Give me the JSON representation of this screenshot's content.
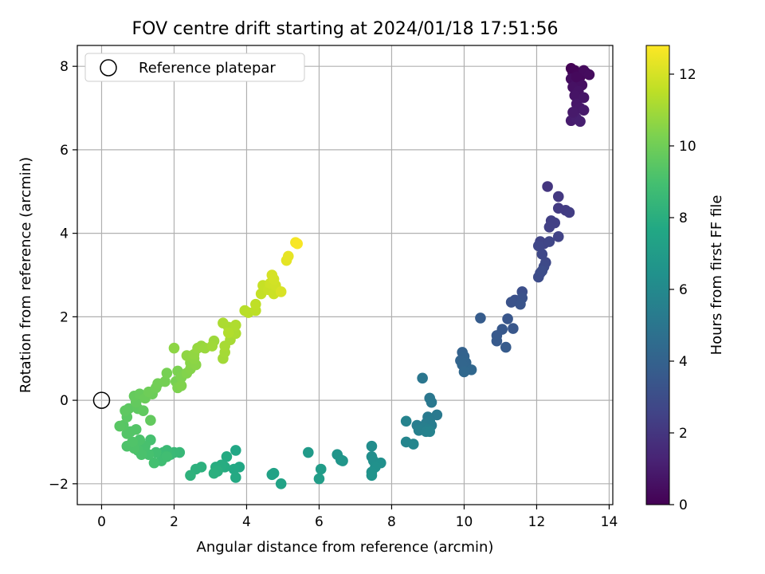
{
  "chart_data": {
    "type": "scatter",
    "title": "FOV centre drift starting at 2024/01/18 17:51:56",
    "xlabel": "Angular distance from reference (arcmin)",
    "ylabel": "Rotation from reference (arcmin)",
    "xlim": [
      -0.67,
      14.1
    ],
    "ylim": [
      -2.5,
      8.5
    ],
    "xticks": [
      0,
      2,
      4,
      6,
      8,
      10,
      12,
      14
    ],
    "yticks": [
      -2,
      0,
      2,
      4,
      6,
      8
    ],
    "xtick_labels": [
      "0",
      "2",
      "4",
      "6",
      "8",
      "10",
      "12",
      "14"
    ],
    "ytick_labels": [
      "−2",
      "0",
      "2",
      "4",
      "6",
      "8"
    ],
    "grid": true,
    "legend": {
      "placement": "upper-left",
      "entries": [
        "Reference platepar"
      ]
    },
    "reference_point": {
      "x": 0,
      "y": 0
    },
    "colorbar": {
      "label": "Hours from first FF file",
      "colormap": "viridis",
      "range": [
        0,
        12.8
      ],
      "ticks": [
        0,
        2,
        4,
        6,
        8,
        10,
        12
      ],
      "tick_labels": [
        "0",
        "2",
        "4",
        "6",
        "8",
        "10",
        "12"
      ]
    },
    "points": [
      [
        12.95,
        7.95,
        0.05
      ],
      [
        13.0,
        7.85,
        0.1
      ],
      [
        13.05,
        7.9,
        0.15
      ],
      [
        13.1,
        7.8,
        0.2
      ],
      [
        13.2,
        7.75,
        0.25
      ],
      [
        13.35,
        7.85,
        0.3
      ],
      [
        13.3,
        7.9,
        0.35
      ],
      [
        13.45,
        7.8,
        0.4
      ],
      [
        12.95,
        7.7,
        0.45
      ],
      [
        13.1,
        7.6,
        0.5
      ],
      [
        13.25,
        7.55,
        0.55
      ],
      [
        13.0,
        7.5,
        0.6
      ],
      [
        13.15,
        7.4,
        0.65
      ],
      [
        13.05,
        7.3,
        0.7
      ],
      [
        13.3,
        7.25,
        0.75
      ],
      [
        13.1,
        7.1,
        0.8
      ],
      [
        13.2,
        7.0,
        0.85
      ],
      [
        13.3,
        6.95,
        0.9
      ],
      [
        13.05,
        6.8,
        0.95
      ],
      [
        12.95,
        6.7,
        1.0
      ],
      [
        13.1,
        6.75,
        1.05
      ],
      [
        13.2,
        6.68,
        1.1
      ],
      [
        13.0,
        6.9,
        0.9
      ],
      [
        13.1,
        7.75,
        0.3
      ],
      [
        12.3,
        5.12,
        2.0
      ],
      [
        12.6,
        4.88,
        2.1
      ],
      [
        12.6,
        4.6,
        2.2
      ],
      [
        12.8,
        4.55,
        2.25
      ],
      [
        12.9,
        4.5,
        2.3
      ],
      [
        12.4,
        4.3,
        2.35
      ],
      [
        12.5,
        4.25,
        2.4
      ],
      [
        12.35,
        4.15,
        2.45
      ],
      [
        12.6,
        3.92,
        2.5
      ],
      [
        12.1,
        3.8,
        2.55
      ],
      [
        12.2,
        3.75,
        2.6
      ],
      [
        12.35,
        3.8,
        2.65
      ],
      [
        12.05,
        3.7,
        2.7
      ],
      [
        12.15,
        3.5,
        2.75
      ],
      [
        12.25,
        3.3,
        2.8
      ],
      [
        12.2,
        3.2,
        2.85
      ],
      [
        12.1,
        3.05,
        2.9
      ],
      [
        12.05,
        2.95,
        2.95
      ],
      [
        12.15,
        3.1,
        3.0
      ],
      [
        11.6,
        2.6,
        3.1
      ],
      [
        11.4,
        2.4,
        3.15
      ],
      [
        11.6,
        2.45,
        3.2
      ],
      [
        11.3,
        2.35,
        3.25
      ],
      [
        11.55,
        2.3,
        3.3
      ],
      [
        11.2,
        1.95,
        3.4
      ],
      [
        11.35,
        1.72,
        3.45
      ],
      [
        11.05,
        1.7,
        3.5
      ],
      [
        10.9,
        1.55,
        3.55
      ],
      [
        10.9,
        1.42,
        3.6
      ],
      [
        11.15,
        1.27,
        3.65
      ],
      [
        10.45,
        1.97,
        3.7
      ],
      [
        9.95,
        1.15,
        4.0
      ],
      [
        10.0,
        1.05,
        4.05
      ],
      [
        9.9,
        0.95,
        4.1
      ],
      [
        10.05,
        0.9,
        4.15
      ],
      [
        9.95,
        0.85,
        4.2
      ],
      [
        10.2,
        0.73,
        4.25
      ],
      [
        10.0,
        0.68,
        4.3
      ],
      [
        8.85,
        0.53,
        5.0
      ],
      [
        9.05,
        0.05,
        5.05
      ],
      [
        9.1,
        -0.05,
        5.1
      ],
      [
        9.25,
        -0.35,
        5.15
      ],
      [
        9.0,
        -0.4,
        5.2
      ],
      [
        9.05,
        -0.5,
        5.25
      ],
      [
        8.95,
        -0.55,
        5.3
      ],
      [
        9.1,
        -0.6,
        5.35
      ],
      [
        8.7,
        -0.6,
        5.4
      ],
      [
        8.9,
        -0.65,
        5.45
      ],
      [
        9.0,
        -0.7,
        5.5
      ],
      [
        8.75,
        -0.72,
        5.55
      ],
      [
        8.95,
        -0.75,
        5.6
      ],
      [
        9.05,
        -0.75,
        5.65
      ],
      [
        8.4,
        -0.5,
        5.7
      ],
      [
        8.4,
        -1.0,
        5.8
      ],
      [
        8.6,
        -1.05,
        5.85
      ],
      [
        7.45,
        -1.1,
        6.2
      ],
      [
        7.45,
        -1.35,
        6.25
      ],
      [
        7.5,
        -1.45,
        6.3
      ],
      [
        7.7,
        -1.5,
        6.35
      ],
      [
        7.55,
        -1.6,
        6.4
      ],
      [
        7.45,
        -1.72,
        6.45
      ],
      [
        7.45,
        -1.8,
        6.5
      ],
      [
        6.6,
        -1.43,
        6.6
      ],
      [
        6.5,
        -1.3,
        6.65
      ],
      [
        6.65,
        -1.45,
        6.7
      ],
      [
        5.7,
        -1.25,
        6.9
      ],
      [
        6.05,
        -1.65,
        7.0
      ],
      [
        6.0,
        -1.88,
        7.05
      ],
      [
        4.7,
        -1.78,
        7.3
      ],
      [
        4.75,
        -1.75,
        7.35
      ],
      [
        4.95,
        -2.0,
        7.4
      ],
      [
        3.7,
        -1.2,
        7.6
      ],
      [
        3.8,
        -1.6,
        7.65
      ],
      [
        3.65,
        -1.65,
        7.7
      ],
      [
        3.7,
        -1.85,
        7.75
      ],
      [
        3.45,
        -1.35,
        7.8
      ],
      [
        3.4,
        -1.6,
        7.85
      ],
      [
        3.3,
        -1.55,
        7.9
      ],
      [
        3.15,
        -1.6,
        7.95
      ],
      [
        3.2,
        -1.7,
        8.0
      ],
      [
        3.1,
        -1.75,
        8.05
      ],
      [
        2.75,
        -1.6,
        8.1
      ],
      [
        2.6,
        -1.65,
        8.15
      ],
      [
        2.45,
        -1.8,
        8.2
      ],
      [
        2.15,
        -1.25,
        8.5
      ],
      [
        2.0,
        -1.25,
        8.55
      ],
      [
        1.9,
        -1.3,
        8.6
      ],
      [
        1.8,
        -1.2,
        8.65
      ],
      [
        1.7,
        -1.25,
        8.7
      ],
      [
        1.75,
        -1.35,
        8.75
      ],
      [
        1.65,
        -1.45,
        8.8
      ],
      [
        1.8,
        -1.35,
        8.85
      ],
      [
        1.5,
        -1.25,
        8.9
      ],
      [
        1.45,
        -1.5,
        8.95
      ],
      [
        1.3,
        -1.3,
        9.0
      ],
      [
        1.35,
        -0.95,
        9.0
      ],
      [
        1.2,
        -1.1,
        9.05
      ],
      [
        1.1,
        -1.3,
        9.1
      ],
      [
        1.0,
        -1.2,
        9.1
      ],
      [
        1.05,
        -0.95,
        9.15
      ],
      [
        0.9,
        -1.15,
        9.2
      ],
      [
        0.7,
        -1.1,
        9.2
      ],
      [
        0.85,
        -1.0,
        9.25
      ],
      [
        0.8,
        -0.75,
        9.3
      ],
      [
        0.7,
        -0.8,
        9.35
      ],
      [
        0.95,
        -0.7,
        9.35
      ],
      [
        0.6,
        -0.6,
        9.4
      ],
      [
        0.5,
        -0.62,
        9.45
      ],
      [
        0.7,
        -0.4,
        9.5
      ],
      [
        0.75,
        -0.2,
        9.55
      ],
      [
        0.65,
        -0.25,
        9.6
      ],
      [
        1.0,
        -0.2,
        9.6
      ],
      [
        1.15,
        -0.25,
        9.65
      ],
      [
        0.95,
        -0.05,
        9.7
      ],
      [
        1.35,
        -0.48,
        9.7
      ],
      [
        0.9,
        0.1,
        9.75
      ],
      [
        1.05,
        0.15,
        9.8
      ],
      [
        1.2,
        0.05,
        9.85
      ],
      [
        1.4,
        0.15,
        9.9
      ],
      [
        1.3,
        0.2,
        9.95
      ],
      [
        1.5,
        0.3,
        10.0
      ],
      [
        1.55,
        0.4,
        10.05
      ],
      [
        1.75,
        0.45,
        10.1
      ],
      [
        1.8,
        0.65,
        10.15
      ],
      [
        2.05,
        0.45,
        10.2
      ],
      [
        2.1,
        0.7,
        10.25
      ],
      [
        2.2,
        0.55,
        10.3
      ],
      [
        2.1,
        0.3,
        10.3
      ],
      [
        2.2,
        0.35,
        10.35
      ],
      [
        2.35,
        0.65,
        10.4
      ],
      [
        2.45,
        0.75,
        10.45
      ],
      [
        2.45,
        0.9,
        10.5
      ],
      [
        2.6,
        0.85,
        10.55
      ],
      [
        2.55,
        1.0,
        10.6
      ],
      [
        2.35,
        1.07,
        10.65
      ],
      [
        2.55,
        1.1,
        10.7
      ],
      [
        2.0,
        1.25,
        10.6
      ],
      [
        2.65,
        1.25,
        10.75
      ],
      [
        2.75,
        1.3,
        10.8
      ],
      [
        2.85,
        1.25,
        10.85
      ],
      [
        3.1,
        1.42,
        10.9
      ],
      [
        3.05,
        1.3,
        10.95
      ],
      [
        3.35,
        1.0,
        11.0
      ],
      [
        3.4,
        1.15,
        11.05
      ],
      [
        3.4,
        1.3,
        11.1
      ],
      [
        3.55,
        1.45,
        11.1
      ],
      [
        3.5,
        1.75,
        11.15
      ],
      [
        3.7,
        1.6,
        11.2
      ],
      [
        3.7,
        1.8,
        11.25
      ],
      [
        3.35,
        1.85,
        11.2
      ],
      [
        3.5,
        1.62,
        11.3
      ],
      [
        3.95,
        2.15,
        11.4
      ],
      [
        4.05,
        2.1,
        11.45
      ],
      [
        4.25,
        2.15,
        11.5
      ],
      [
        4.25,
        2.3,
        11.55
      ],
      [
        4.4,
        2.55,
        11.65
      ],
      [
        4.45,
        2.75,
        11.7
      ],
      [
        4.6,
        2.65,
        11.75
      ],
      [
        4.75,
        2.55,
        11.8
      ],
      [
        4.65,
        2.8,
        11.85
      ],
      [
        4.8,
        2.75,
        11.9
      ],
      [
        4.75,
        2.9,
        11.95
      ],
      [
        4.7,
        3.0,
        12.0
      ],
      [
        4.95,
        2.6,
        12.05
      ],
      [
        5.1,
        3.35,
        12.3
      ],
      [
        5.15,
        3.45,
        12.35
      ],
      [
        5.35,
        3.78,
        12.6
      ],
      [
        5.4,
        3.75,
        12.7
      ]
    ]
  }
}
